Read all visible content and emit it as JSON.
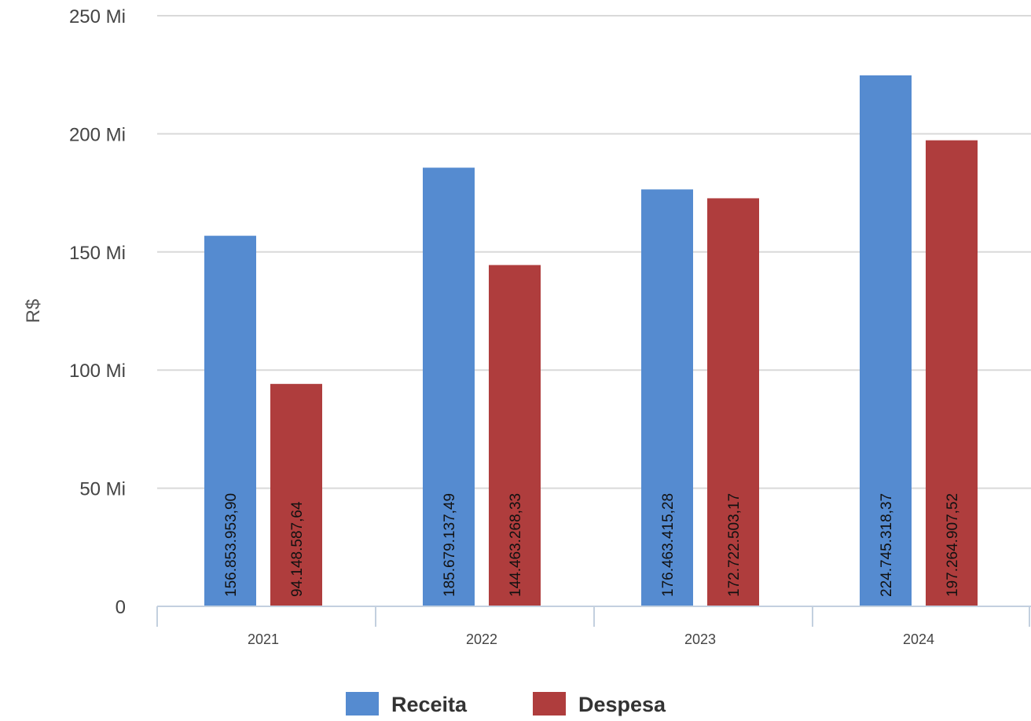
{
  "chart_data": {
    "type": "bar",
    "categories": [
      "2021",
      "2022",
      "2023",
      "2024"
    ],
    "series": [
      {
        "name": "Receita",
        "color": "#558BD0",
        "values": [
          156853953.9,
          185679137.49,
          176463415.28,
          224745318.37
        ],
        "labels": [
          "156.853.953,90",
          "185.679.137,49",
          "176.463.415,28",
          "224.745.318,37"
        ]
      },
      {
        "name": "Despesa",
        "color": "#AF3D3D",
        "values": [
          94148587.64,
          144463268.33,
          172722503.17,
          197264907.52
        ],
        "labels": [
          "94.148.587,64",
          "144.463.268,33",
          "172.722.503,17",
          "197.264.907,52"
        ]
      }
    ],
    "title": "",
    "xlabel": "",
    "ylabel": "R$",
    "ylim": [
      0,
      250000000
    ],
    "yticks": [
      0,
      50000000,
      100000000,
      150000000,
      200000000,
      250000000
    ],
    "ytick_labels": [
      "0",
      "50 Mi",
      "100 Mi",
      "150 Mi",
      "200 Mi",
      "250 Mi"
    ],
    "grid": true,
    "legend_position": "bottom-center"
  }
}
